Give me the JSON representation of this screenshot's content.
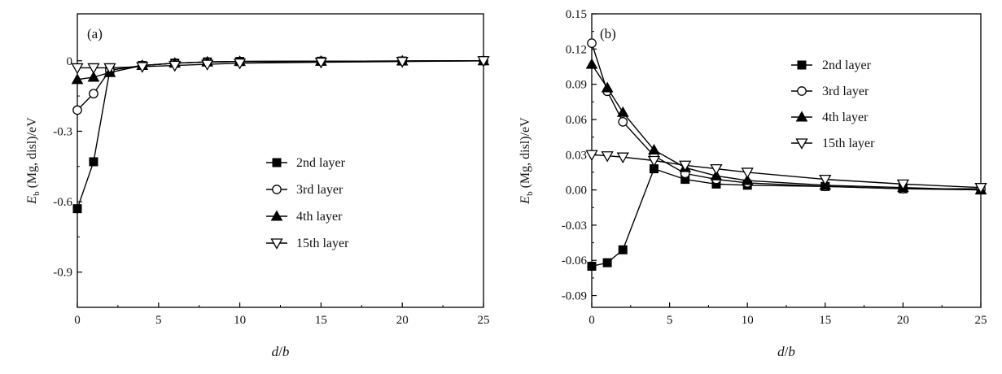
{
  "chart_data": [
    {
      "type": "line",
      "panel_label": "(a)",
      "xlabel": "d/b",
      "xlabel_parts": {
        "d": "d",
        "slash": "/",
        "b": "b"
      },
      "ylabel": "E_b (Mg, disl)/eV",
      "ylabel_parts": {
        "sym": "E",
        "sub": "b",
        "rest": " (Mg, disl)/eV"
      },
      "xlim": [
        0,
        25
      ],
      "ylim": [
        -1.05,
        0.2
      ],
      "xticks": [
        0,
        5,
        10,
        15,
        20,
        25
      ],
      "xtick_labels": [
        "0",
        "5",
        "10",
        "15",
        "20",
        "25"
      ],
      "yticks": [
        -0.9,
        -0.6,
        -0.3,
        0
      ],
      "ytick_labels": [
        "-0.9",
        "-0.6",
        "-0.3",
        "0"
      ],
      "legend_position": "center-right",
      "series": [
        {
          "name": "2nd layer",
          "marker": "square-filled",
          "x": [
            0,
            1,
            2,
            4,
            6,
            8,
            10,
            15,
            20,
            25
          ],
          "y": [
            -0.63,
            -0.43,
            -0.04,
            -0.02,
            -0.01,
            -0.005,
            -0.003,
            -0.002,
            -0.001,
            0
          ]
        },
        {
          "name": "3rd layer",
          "marker": "circle-open",
          "x": [
            0,
            1,
            2,
            4,
            6,
            8,
            10,
            15,
            20,
            25
          ],
          "y": [
            -0.21,
            -0.14,
            -0.04,
            -0.02,
            -0.01,
            -0.005,
            -0.003,
            -0.002,
            -0.001,
            0
          ]
        },
        {
          "name": "4th layer",
          "marker": "triangle-up-filled",
          "x": [
            0,
            1,
            2,
            4,
            6,
            8,
            10,
            15,
            20,
            25
          ],
          "y": [
            -0.08,
            -0.07,
            -0.05,
            -0.02,
            -0.01,
            -0.005,
            -0.003,
            -0.002,
            -0.001,
            0
          ]
        },
        {
          "name": "15th layer",
          "marker": "triangle-down-open",
          "x": [
            0,
            1,
            2,
            4,
            6,
            8,
            10,
            15,
            20,
            25
          ],
          "y": [
            -0.03,
            -0.03,
            -0.03,
            -0.025,
            -0.02,
            -0.015,
            -0.01,
            -0.006,
            -0.003,
            0
          ]
        }
      ]
    },
    {
      "type": "line",
      "panel_label": "(b)",
      "xlabel": "d/b",
      "xlabel_parts": {
        "d": "d",
        "slash": "/",
        "b": "b"
      },
      "ylabel": "E_b (Mg, disl)/eV",
      "ylabel_parts": {
        "sym": "E",
        "sub": "b",
        "rest": " (Mg, disl)/eV"
      },
      "xlim": [
        0,
        25
      ],
      "ylim": [
        -0.1,
        0.15
      ],
      "xticks": [
        0,
        5,
        10,
        15,
        20,
        25
      ],
      "xtick_labels": [
        "0",
        "5",
        "10",
        "15",
        "20",
        "25"
      ],
      "yticks": [
        -0.09,
        -0.06,
        -0.03,
        0.0,
        0.03,
        0.06,
        0.09,
        0.12,
        0.15
      ],
      "ytick_labels": [
        "-0.09",
        "-0.06",
        "-0.03",
        "0.00",
        "0.03",
        "0.06",
        "0.09",
        "0.12",
        "0.15"
      ],
      "legend_position": "top-right",
      "series": [
        {
          "name": "2nd layer",
          "marker": "square-filled",
          "x": [
            0,
            1,
            2,
            4,
            6,
            8,
            10,
            15,
            20,
            25
          ],
          "y": [
            -0.065,
            -0.062,
            -0.051,
            0.018,
            0.009,
            0.005,
            0.004,
            0.003,
            0.001,
            0.0
          ]
        },
        {
          "name": "3rd layer",
          "marker": "circle-open",
          "x": [
            0,
            1,
            2,
            4,
            6,
            8,
            10,
            15,
            20,
            25
          ],
          "y": [
            0.125,
            0.084,
            0.058,
            0.029,
            0.014,
            0.009,
            0.006,
            0.003,
            0.001,
            0.001
          ]
        },
        {
          "name": "4th layer",
          "marker": "triangle-up-filled",
          "x": [
            0,
            1,
            2,
            4,
            6,
            8,
            10,
            15,
            20,
            25
          ],
          "y": [
            0.107,
            0.087,
            0.066,
            0.034,
            0.019,
            0.012,
            0.008,
            0.004,
            0.002,
            0.0
          ]
        },
        {
          "name": "15th layer",
          "marker": "triangle-down-open",
          "x": [
            0,
            1,
            2,
            4,
            6,
            8,
            10,
            15,
            20,
            25
          ],
          "y": [
            0.03,
            0.029,
            0.028,
            0.025,
            0.021,
            0.018,
            0.015,
            0.009,
            0.005,
            0.002
          ]
        }
      ]
    }
  ]
}
